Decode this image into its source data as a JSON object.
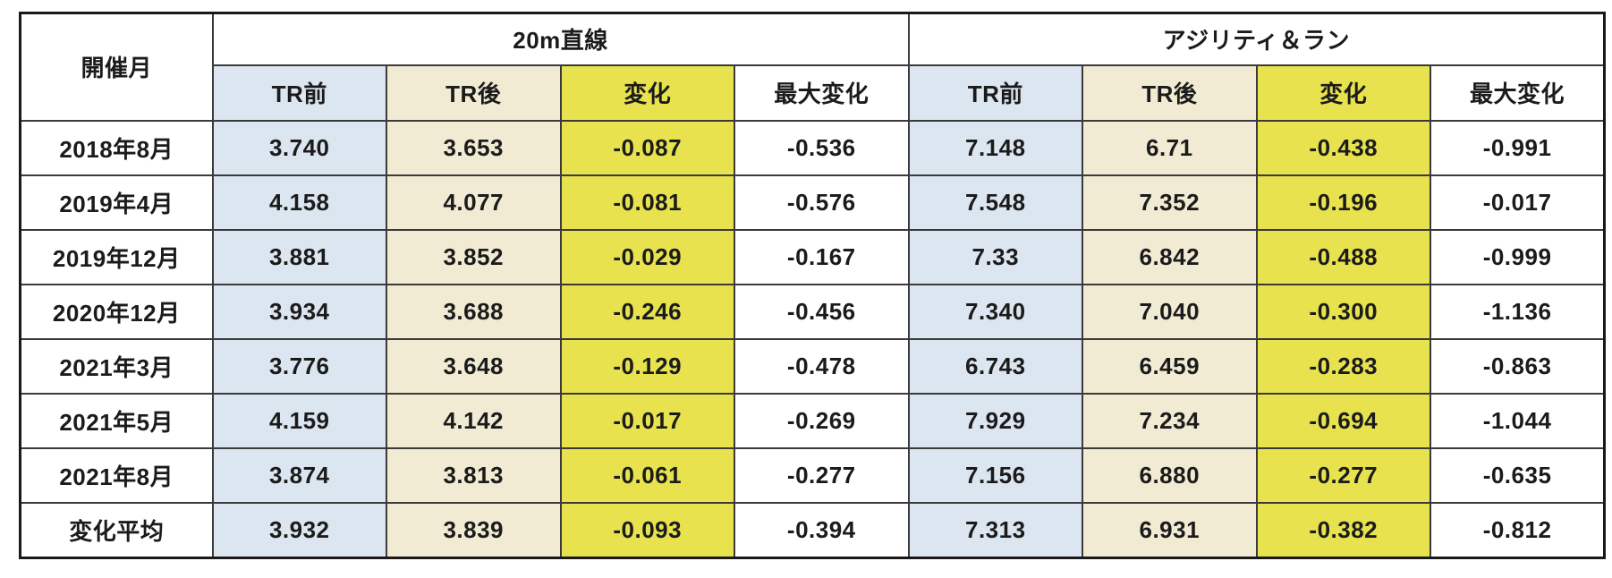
{
  "table": {
    "corner_header": "開催月",
    "group_headers": [
      "20m直線",
      "アジリティ＆ラン"
    ],
    "sub_headers": [
      "TR前",
      "TR後",
      "変化",
      "最大変化"
    ],
    "colors": {
      "tr_before_bg": "#dce6f0",
      "tr_after_bg": "#f1ebd3",
      "change_bg": "#e7e24e",
      "max_change_bg": "#ffffff",
      "group_divider": "#8d8d8d",
      "grid_border": "#3a3a3a"
    }
  },
  "chart_data": {
    "type": "table",
    "title": "",
    "column_groups": [
      {
        "label": "20m直線",
        "columns": [
          1,
          2,
          3,
          4
        ]
      },
      {
        "label": "アジリティ＆ラン",
        "columns": [
          5,
          6,
          7,
          8
        ]
      }
    ],
    "columns": [
      "開催月",
      "TR前",
      "TR後",
      "変化",
      "最大変化",
      "TR前",
      "TR後",
      "変化",
      "最大変化"
    ],
    "rows": [
      [
        "2018年8月",
        "3.740",
        "3.653",
        "-0.087",
        "-0.536",
        "7.148",
        "6.71",
        "-0.438",
        "-0.991"
      ],
      [
        "2019年4月",
        "4.158",
        "4.077",
        "-0.081",
        "-0.576",
        "7.548",
        "7.352",
        "-0.196",
        "-0.017"
      ],
      [
        "2019年12月",
        "3.881",
        "3.852",
        "-0.029",
        "-0.167",
        "7.33",
        "6.842",
        "-0.488",
        "-0.999"
      ],
      [
        "2020年12月",
        "3.934",
        "3.688",
        "-0.246",
        "-0.456",
        "7.340",
        "7.040",
        "-0.300",
        "-1.136"
      ],
      [
        "2021年3月",
        "3.776",
        "3.648",
        "-0.129",
        "-0.478",
        "6.743",
        "6.459",
        "-0.283",
        "-0.863"
      ],
      [
        "2021年5月",
        "4.159",
        "4.142",
        "-0.017",
        "-0.269",
        "7.929",
        "7.234",
        "-0.694",
        "-1.044"
      ],
      [
        "2021年8月",
        "3.874",
        "3.813",
        "-0.061",
        "-0.277",
        "7.156",
        "6.880",
        "-0.277",
        "-0.635"
      ],
      [
        "変化平均",
        "3.932",
        "3.839",
        "-0.093",
        "-0.394",
        "7.313",
        "6.931",
        "-0.382",
        "-0.812"
      ]
    ]
  }
}
